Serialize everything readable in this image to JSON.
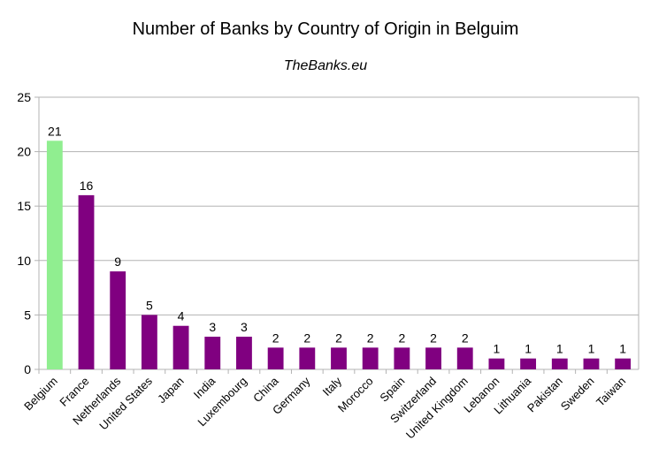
{
  "chart_data": {
    "type": "bar",
    "title": "Number of Banks by Country of Origin in Belguim",
    "subtitle": "TheBanks.eu",
    "xlabel": "",
    "ylabel": "",
    "ylim": [
      0,
      25
    ],
    "yticks": [
      0,
      5,
      10,
      15,
      20,
      25
    ],
    "grid": true,
    "legend": "none",
    "categories": [
      "Belgium",
      "France",
      "Netherlands",
      "United States",
      "Japan",
      "India",
      "Luxembourg",
      "China",
      "Germany",
      "Italy",
      "Morocco",
      "Spain",
      "Switzerland",
      "United Kingdom",
      "Lebanon",
      "Lithuania",
      "Pakistan",
      "Sweden",
      "Taiwan"
    ],
    "values": [
      21,
      16,
      9,
      5,
      4,
      3,
      3,
      2,
      2,
      2,
      2,
      2,
      2,
      2,
      1,
      1,
      1,
      1,
      1
    ],
    "colors": {
      "highlight": "#90ee90",
      "default": "#800080",
      "grid": "#b3b3b3",
      "axis": "#b3b3b3"
    },
    "highlight_category": "Belgium"
  }
}
